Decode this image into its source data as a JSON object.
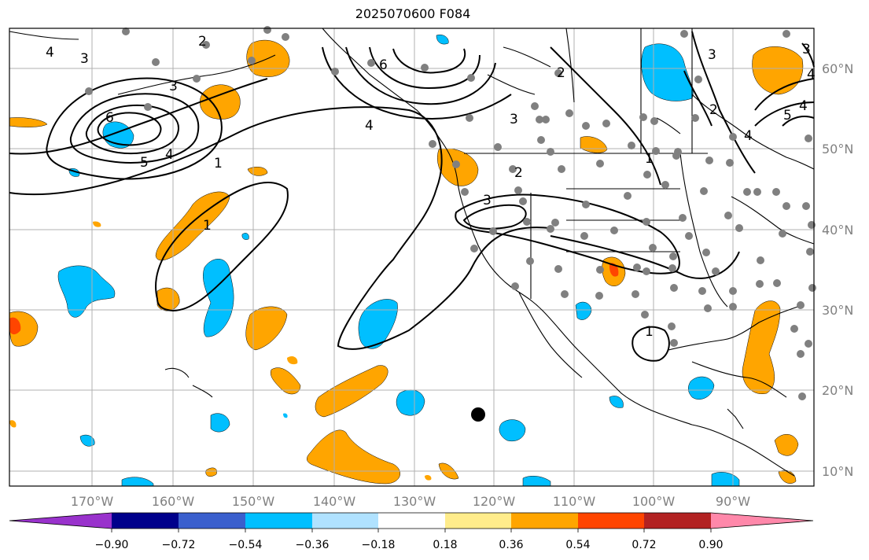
{
  "title": "2025070600 F084",
  "map": {
    "lat_ticks": [
      "60°N",
      "50°N",
      "40°N",
      "30°N",
      "20°N",
      "10°N"
    ],
    "lon_ticks": [
      "170°W",
      "160°W",
      "150°W",
      "140°W",
      "130°W",
      "120°W",
      "110°W",
      "100°W",
      "90°W"
    ],
    "contour_labels": [
      "4",
      "3",
      "2",
      "3",
      "6",
      "5",
      "4",
      "1",
      "1",
      "6",
      "4",
      "3",
      "2",
      "1",
      "2",
      "3",
      "1",
      "3",
      "2",
      "4",
      "5",
      "4",
      "3",
      "4"
    ]
  },
  "colorbar": {
    "ticks": [
      "−0.90",
      "−0.72",
      "−0.54",
      "−0.36",
      "−0.18",
      "0.18",
      "0.36",
      "0.54",
      "0.72",
      "0.90"
    ],
    "colors": [
      "#9932cc",
      "#00008b",
      "#3a5fcd",
      "#00bfff",
      "#b0e2ff",
      "#ffffff",
      "#ffec8b",
      "#ffa500",
      "#ff4500",
      "#b22222",
      "#ff88aa"
    ]
  }
}
